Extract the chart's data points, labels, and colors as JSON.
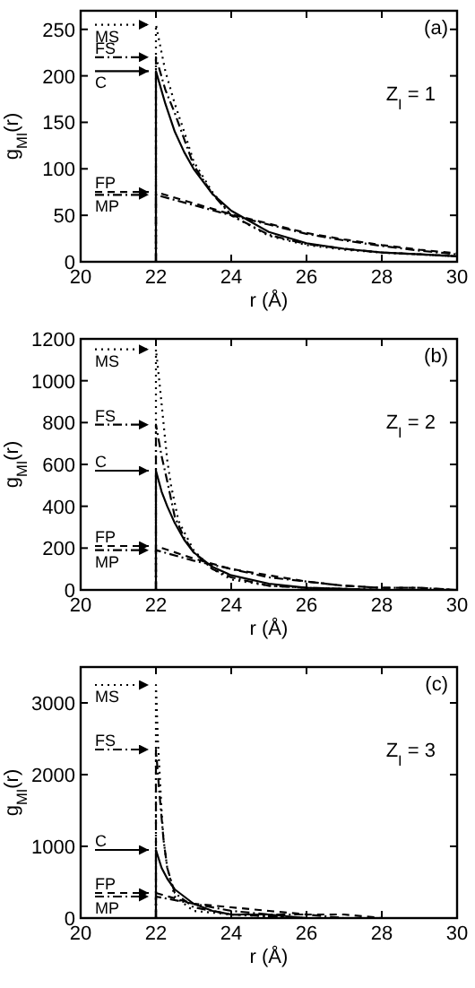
{
  "chart_data": [
    {
      "type": "line",
      "xlabel": "r (Å)",
      "ylabel": "g$_{MI}$(r)",
      "xlim": [
        20,
        30
      ],
      "xticks": [
        20,
        22,
        24,
        26,
        28,
        30
      ],
      "ylim": [
        0,
        270
      ],
      "yticks": [
        0,
        50,
        100,
        150,
        200,
        250
      ],
      "grid": false,
      "legend": "left",
      "marker": "none",
      "annotations": [
        "(a)",
        "Z$_{I}$ = 1"
      ],
      "series": [
        {
          "name": "MS",
          "color": "#000000",
          "line_style": "dotted",
          "x": [
            22,
            22,
            22.25,
            22.5,
            22.75,
            23,
            23.5,
            24,
            25,
            26,
            27,
            28,
            29,
            30
          ],
          "values": [
            0,
            255,
            205,
            170,
            140,
            108,
            75,
            50,
            28,
            18,
            13,
            10,
            8,
            6
          ]
        },
        {
          "name": "FS",
          "color": "#000000",
          "line_style": "dashdot",
          "x": [
            22,
            22,
            22.25,
            22.5,
            22.75,
            23,
            23.5,
            24,
            25,
            26,
            27,
            28,
            29,
            30
          ],
          "values": [
            0,
            220,
            185,
            160,
            132,
            104,
            73,
            50,
            29,
            19,
            14,
            10,
            8,
            6
          ]
        },
        {
          "name": "C",
          "color": "#000000",
          "line_style": "solid",
          "x": [
            22,
            22,
            22.25,
            22.5,
            22.75,
            23,
            23.5,
            24,
            25,
            26,
            27,
            28,
            29,
            30
          ],
          "values": [
            0,
            205,
            170,
            140,
            118,
            100,
            73,
            55,
            32,
            20,
            14,
            10,
            8,
            6
          ]
        },
        {
          "name": "FP",
          "color": "#000000",
          "line_style": "dashed",
          "x": [
            22,
            22,
            23,
            24,
            25,
            26,
            27,
            28,
            29,
            30
          ],
          "values": [
            0,
            75,
            63,
            51,
            41,
            31,
            24,
            18,
            13,
            9
          ]
        },
        {
          "name": "MP",
          "color": "#000000",
          "line_style": "dashdot",
          "x": [
            22,
            22,
            23,
            24,
            25,
            26,
            27,
            28,
            29,
            30
          ],
          "values": [
            0,
            72,
            61,
            50,
            40,
            30,
            23,
            17,
            12,
            8
          ]
        }
      ]
    },
    {
      "type": "line",
      "xlabel": "r (Å)",
      "ylabel": "g$_{MI}$(r)",
      "xlim": [
        20,
        30
      ],
      "xticks": [
        20,
        22,
        24,
        26,
        28,
        30
      ],
      "ylim": [
        0,
        1200
      ],
      "yticks": [
        0,
        200,
        400,
        600,
        800,
        1000,
        1200
      ],
      "grid": false,
      "legend": "left",
      "marker": "none",
      "annotations": [
        "(b)",
        "Z$_{I}$ = 2"
      ],
      "series": [
        {
          "name": "MS",
          "color": "#000000",
          "line_style": "dotted",
          "x": [
            22,
            22,
            22.1,
            22.2,
            22.3,
            22.4,
            22.6,
            23,
            23.5,
            24,
            25,
            26,
            28,
            30
          ],
          "values": [
            0,
            1150,
            980,
            800,
            620,
            500,
            330,
            190,
            100,
            50,
            20,
            10,
            0,
            0
          ]
        },
        {
          "name": "FS",
          "color": "#000000",
          "line_style": "dashdot",
          "x": [
            22,
            22,
            22.15,
            22.3,
            22.5,
            22.75,
            23,
            23.5,
            24,
            25,
            26,
            28,
            30
          ],
          "values": [
            0,
            790,
            640,
            520,
            350,
            250,
            180,
            100,
            60,
            20,
            10,
            0,
            0
          ]
        },
        {
          "name": "C",
          "color": "#000000",
          "line_style": "solid",
          "x": [
            22,
            22,
            22.15,
            22.3,
            22.5,
            22.75,
            23,
            23.5,
            24,
            25,
            26,
            28,
            30
          ],
          "values": [
            0,
            570,
            470,
            400,
            320,
            240,
            180,
            110,
            70,
            30,
            10,
            0,
            0
          ]
        },
        {
          "name": "FP",
          "color": "#000000",
          "line_style": "dashed",
          "x": [
            22,
            22,
            23,
            24,
            25,
            26,
            27,
            28,
            29,
            30
          ],
          "values": [
            0,
            210,
            150,
            100,
            70,
            40,
            20,
            10,
            10,
            0
          ]
        },
        {
          "name": "MP",
          "color": "#000000",
          "line_style": "dashdot",
          "x": [
            22,
            22,
            23,
            24,
            25,
            26,
            27,
            28,
            29,
            30
          ],
          "values": [
            0,
            190,
            140,
            100,
            60,
            40,
            20,
            10,
            10,
            0
          ]
        }
      ]
    },
    {
      "type": "line",
      "xlabel": "r (Å)",
      "ylabel": "g$_{MI}$(r)",
      "xlim": [
        20,
        30
      ],
      "xticks": [
        20,
        22,
        24,
        26,
        28,
        30
      ],
      "ylim": [
        0,
        3500
      ],
      "yticks": [
        0,
        1000,
        2000,
        3000
      ],
      "grid": false,
      "legend": "left",
      "marker": "none",
      "annotations": [
        "(c)",
        "Z$_{I}$ = 3"
      ],
      "series": [
        {
          "name": "MS",
          "color": "#000000",
          "line_style": "dotted",
          "x": [
            22,
            22,
            22.05,
            22.1,
            22.15,
            22.2,
            22.3,
            22.5,
            23,
            24,
            26,
            28,
            30
          ],
          "values": [
            0,
            3250,
            2500,
            2000,
            1500,
            1100,
            700,
            300,
            100,
            50,
            0,
            0,
            0
          ]
        },
        {
          "name": "FS",
          "color": "#000000",
          "line_style": "dashdot",
          "x": [
            22,
            22,
            22.1,
            22.15,
            22.2,
            22.3,
            22.5,
            23,
            24,
            26,
            28,
            30
          ],
          "values": [
            0,
            2350,
            1700,
            1400,
            1100,
            700,
            350,
            150,
            50,
            0,
            0,
            0
          ]
        },
        {
          "name": "C",
          "color": "#000000",
          "line_style": "solid",
          "x": [
            22,
            22,
            22.15,
            22.3,
            22.5,
            22.75,
            23,
            23.5,
            24,
            25,
            26,
            28,
            30
          ],
          "values": [
            0,
            950,
            700,
            550,
            400,
            300,
            200,
            100,
            50,
            50,
            0,
            0,
            0
          ]
        },
        {
          "name": "FP",
          "color": "#000000",
          "line_style": "dashed",
          "x": [
            22,
            22,
            23,
            24,
            25,
            26,
            27,
            28,
            30
          ],
          "values": [
            0,
            350,
            200,
            150,
            100,
            50,
            50,
            0,
            0
          ]
        },
        {
          "name": "MP",
          "color": "#000000",
          "line_style": "dashdot",
          "x": [
            22,
            22,
            23,
            24,
            25,
            26,
            27,
            28,
            30
          ],
          "values": [
            0,
            300,
            200,
            100,
            50,
            50,
            0,
            0,
            0
          ]
        }
      ]
    }
  ]
}
